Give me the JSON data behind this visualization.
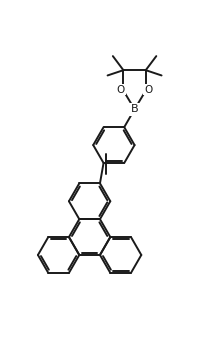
{
  "background": "#ffffff",
  "line_color": "#1a1a1a",
  "lw": 1.4,
  "font_size": 8,
  "xlim": [
    -4.5,
    5.0
  ],
  "ylim": [
    -8.5,
    5.0
  ]
}
